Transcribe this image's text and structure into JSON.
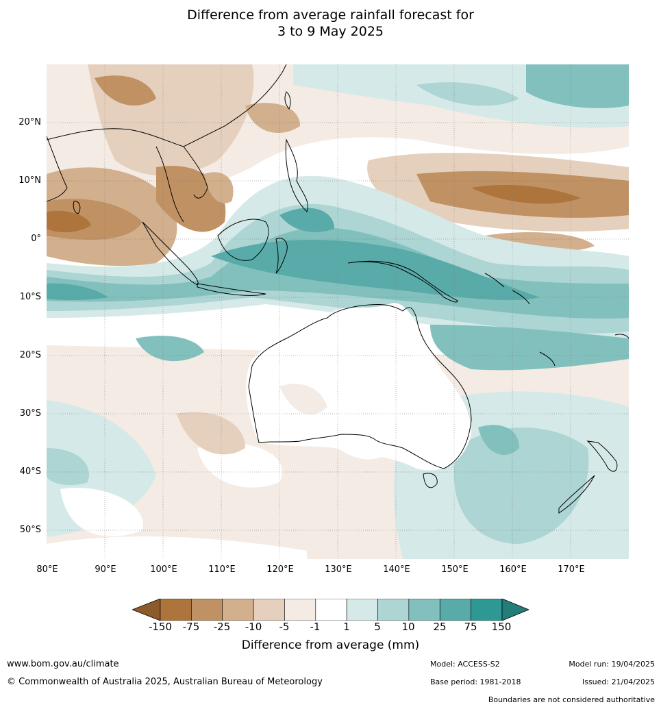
{
  "title_line1": "Difference from average rainfall forecast for",
  "title_line2": "3 to 9 May 2025",
  "lat_labels": [
    "20°N",
    "10°N",
    "0°",
    "10°S",
    "20°S",
    "30°S",
    "40°S",
    "50°S"
  ],
  "lon_labels": [
    "80°E",
    "90°E",
    "100°E",
    "110°E",
    "120°E",
    "130°E",
    "140°E",
    "150°E",
    "160°E",
    "170°E"
  ],
  "legend": {
    "title": "Difference from average (mm)",
    "ticks": [
      "-150",
      "-75",
      "-25",
      "-10",
      "-5",
      "-1",
      "1",
      "5",
      "10",
      "25",
      "75",
      "150"
    ],
    "colors": {
      "dry_extend": "#8c5a2b",
      "dry_150_75": "#ad743c",
      "dry_75_25": "#c09162",
      "dry_25_10": "#d2af8d",
      "dry_10_5": "#e5d0bd",
      "dry_5_1": "#f4ebe4",
      "neutral": "#ffffff",
      "wet_1_5": "#d5eae8",
      "wet_5_10": "#acd5d3",
      "wet_10_25": "#82c0bd",
      "wet_25_75": "#58aba8",
      "wet_75_150": "#2e9994",
      "wet_extend": "#247d79"
    }
  },
  "footer": {
    "url": "www.bom.gov.au/climate",
    "copyright": "© Commonwealth of Australia 2025, Australian Bureau of Meteorology",
    "model": "Model: ACCESS-S2",
    "base_period": "Base period: 1981-2018",
    "model_run": "Model run: 19/04/2025",
    "issued": "Issued: 21/04/2025",
    "disclaimer": "Boundaries are not considered authoritative"
  }
}
